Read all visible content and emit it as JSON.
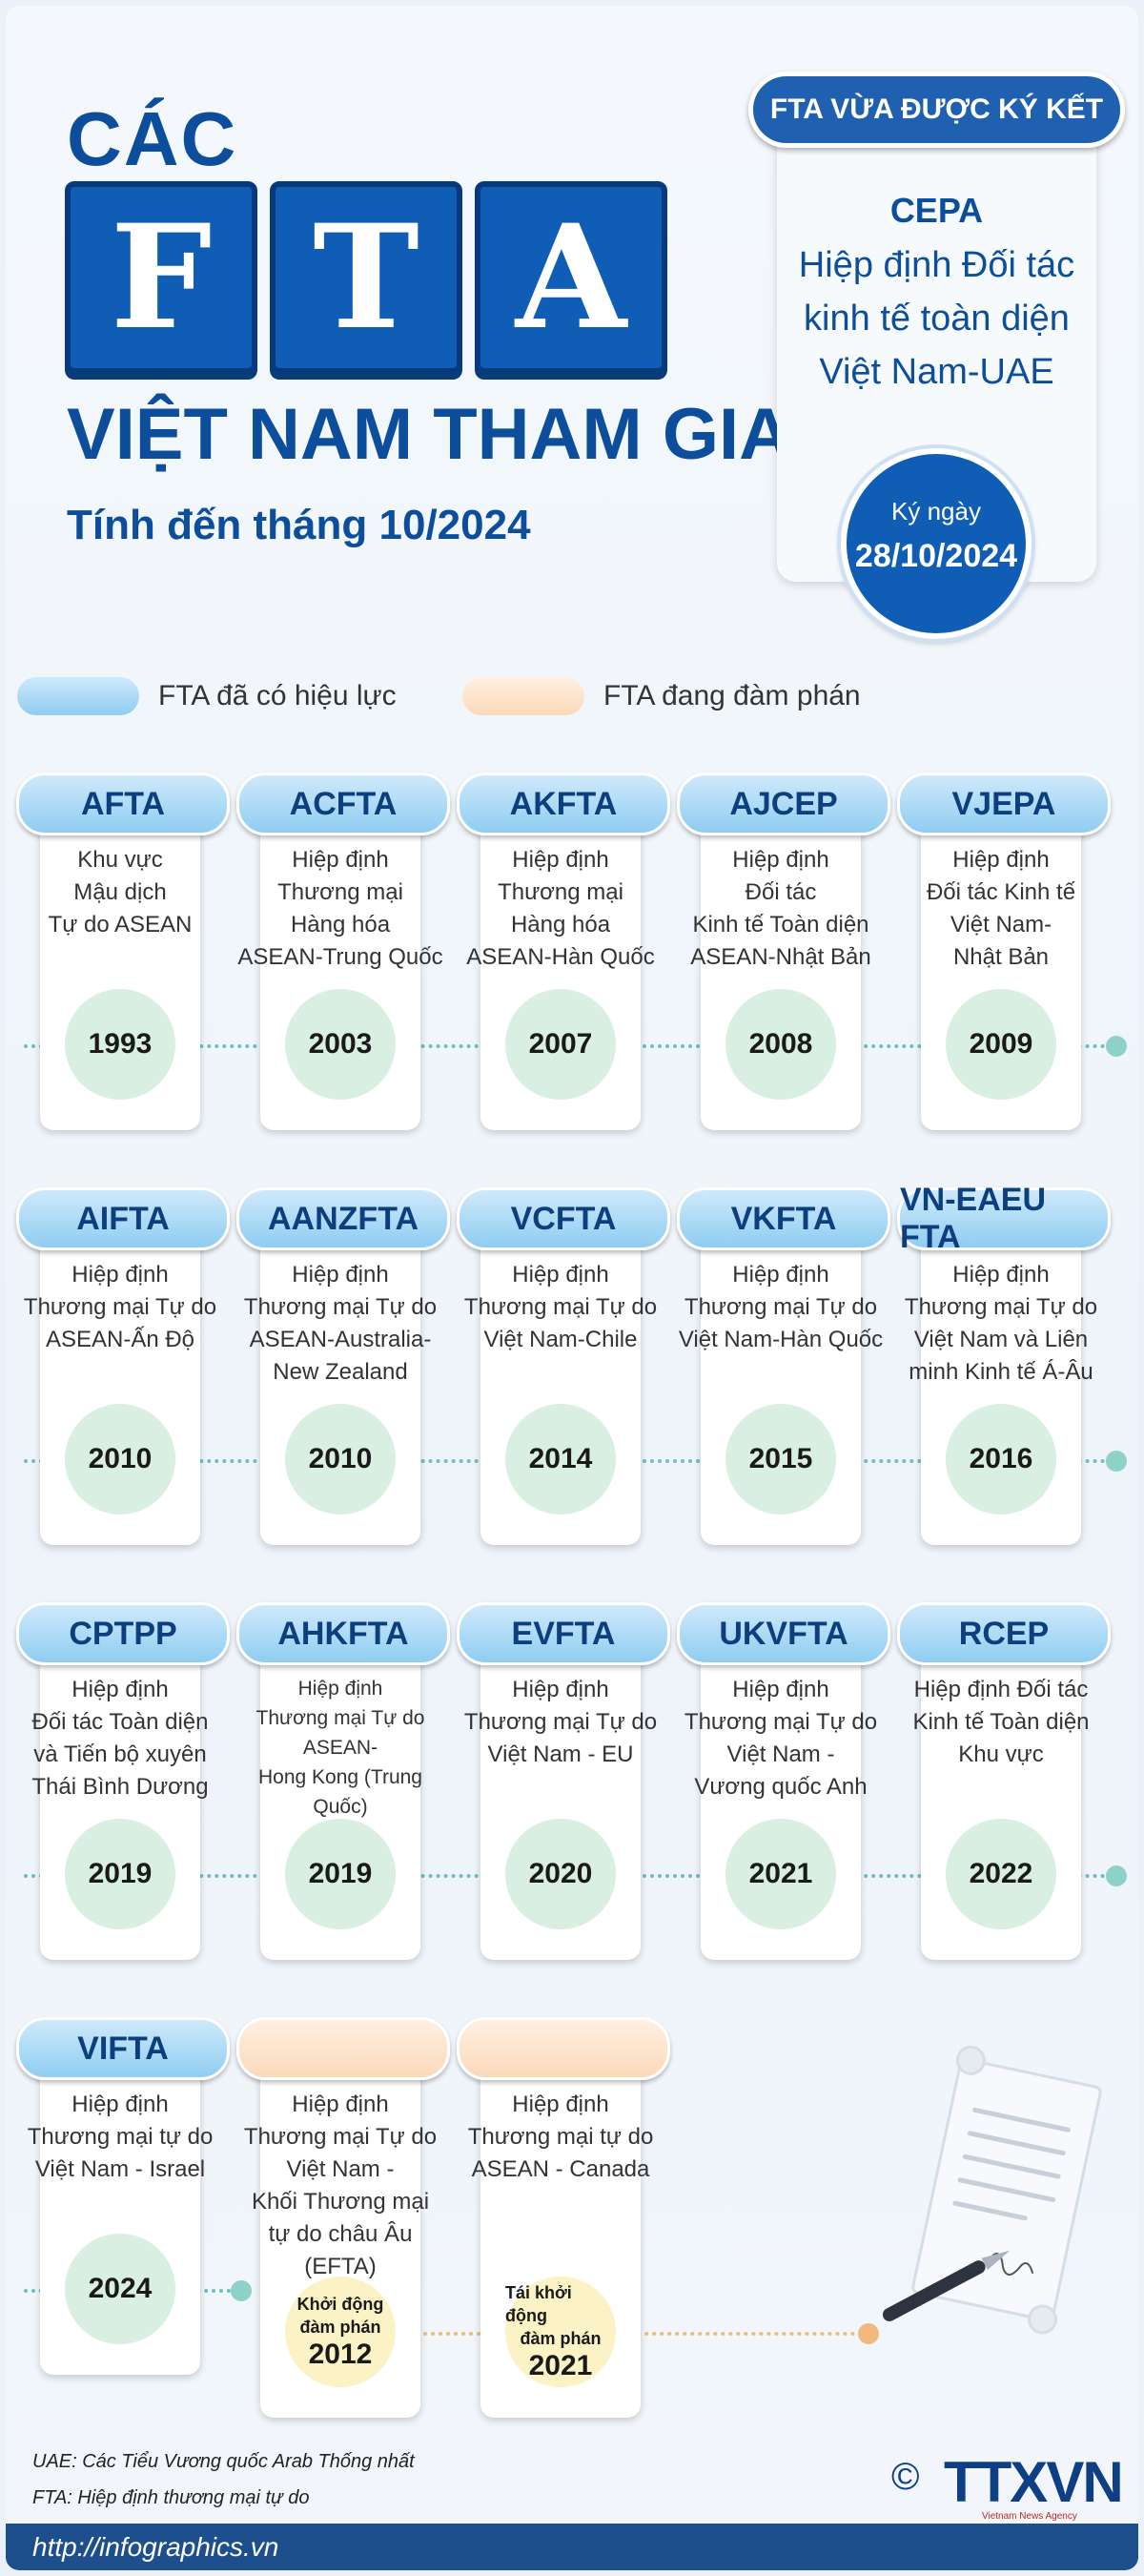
{
  "header": {
    "title_small": "CÁC",
    "letters": [
      "F",
      "T",
      "A"
    ],
    "title_main": "VIỆT NAM THAM GIA",
    "subtitle": "Tính đến tháng 10/2024"
  },
  "new_fta": {
    "label": "FTA VỪA ĐƯỢC KÝ KẾT",
    "abbr": "CEPA",
    "name_lines": [
      "Hiệp định Đối tác",
      "kinh tế toàn diện",
      "Việt Nam-UAE"
    ],
    "sign_label": "Ký ngày",
    "sign_date": "28/10/2024"
  },
  "legend": [
    {
      "label": "FTA đã có hiệu lực",
      "color": "#8fcdf1"
    },
    {
      "label": "FTA đang đàm phán",
      "color": "#fbd9b9"
    }
  ],
  "rows": [
    [
      {
        "abbr": "AFTA",
        "desc": [
          "Khu vực",
          "Mậu dịch",
          "Tự do ASEAN"
        ],
        "year": "1993"
      },
      {
        "abbr": "ACFTA",
        "desc": [
          "Hiệp định",
          "Thương mại",
          "Hàng hóa",
          "ASEAN-Trung Quốc"
        ],
        "year": "2003"
      },
      {
        "abbr": "AKFTA",
        "desc": [
          "Hiệp định",
          "Thương mại",
          "Hàng hóa",
          "ASEAN-Hàn Quốc"
        ],
        "year": "2007"
      },
      {
        "abbr": "AJCEP",
        "desc": [
          "Hiệp định",
          "Đối tác",
          "Kinh tế Toàn diện",
          "ASEAN-Nhật Bản"
        ],
        "year": "2008"
      },
      {
        "abbr": "VJEPA",
        "desc": [
          "Hiệp định",
          "Đối tác Kinh tế",
          "Việt Nam-",
          "Nhật Bản"
        ],
        "year": "2009"
      }
    ],
    [
      {
        "abbr": "AIFTA",
        "desc": [
          "Hiệp định",
          "Thương mại Tự do",
          "ASEAN-Ấn Độ"
        ],
        "year": "2010"
      },
      {
        "abbr": "AANZFTA",
        "desc": [
          "Hiệp định",
          "Thương mại Tự do",
          "ASEAN-Australia-",
          "New Zealand"
        ],
        "year": "2010"
      },
      {
        "abbr": "VCFTA",
        "desc": [
          "Hiệp định",
          "Thương mại Tự do",
          "Việt Nam-Chile"
        ],
        "year": "2014"
      },
      {
        "abbr": "VKFTA",
        "desc": [
          "Hiệp định",
          "Thương mại Tự do",
          "Việt Nam-Hàn Quốc"
        ],
        "year": "2015"
      },
      {
        "abbr": "VN-EAEU FTA",
        "desc": [
          "Hiệp định",
          "Thương mại Tự do",
          "Việt Nam và Liên",
          "minh Kinh tế Á-Âu"
        ],
        "year": "2016"
      }
    ],
    [
      {
        "abbr": "CPTPP",
        "desc": [
          "Hiệp định",
          "Đối tác Toàn diện",
          "và Tiến bộ xuyên",
          "Thái Bình Dương"
        ],
        "year": "2019"
      },
      {
        "abbr": "AHKFTA",
        "desc": [
          "Hiệp định",
          "Thương mại Tự do",
          "ASEAN-",
          "Hong Kong (Trung Quốc)"
        ],
        "year": "2019",
        "small": true
      },
      {
        "abbr": "EVFTA",
        "desc": [
          "Hiệp định",
          "Thương mại Tự do",
          "Việt Nam - EU"
        ],
        "year": "2020"
      },
      {
        "abbr": "UKVFTA",
        "desc": [
          "Hiệp định",
          "Thương mại Tự do",
          "Việt Nam -",
          "Vương quốc Anh"
        ],
        "year": "2021"
      },
      {
        "abbr": "RCEP",
        "desc": [
          "Hiệp định Đối tác",
          "Kinh tế Toàn diện",
          "Khu vực"
        ],
        "year": "2022"
      }
    ]
  ],
  "last_row": {
    "effective": {
      "abbr": "VIFTA",
      "desc": [
        "Hiệp định",
        "Thương mại tự do",
        "Việt Nam - Israel"
      ],
      "year": "2024"
    },
    "negotiating": [
      {
        "desc": [
          "Hiệp định",
          "Thương mại Tự do",
          "Việt Nam -",
          "Khối Thương mại",
          "tự do châu Âu",
          "(EFTA)"
        ],
        "status": [
          "Khởi động",
          "đàm phán"
        ],
        "year": "2012"
      },
      {
        "desc": [
          "Hiệp định",
          "Thương mại tự do",
          "ASEAN - Canada"
        ],
        "status": [
          "Tái khởi động",
          "đàm phán"
        ],
        "year": "2021"
      }
    ]
  },
  "notes": [
    "UAE: Các Tiểu Vương quốc Arab Thống nhất",
    "FTA: Hiệp định thương mại tự do"
  ],
  "footer": {
    "url": "http://infographics.vn",
    "logo": "TTXVN",
    "logo_sub": "Vietnam News Agency",
    "copyright": "©"
  }
}
